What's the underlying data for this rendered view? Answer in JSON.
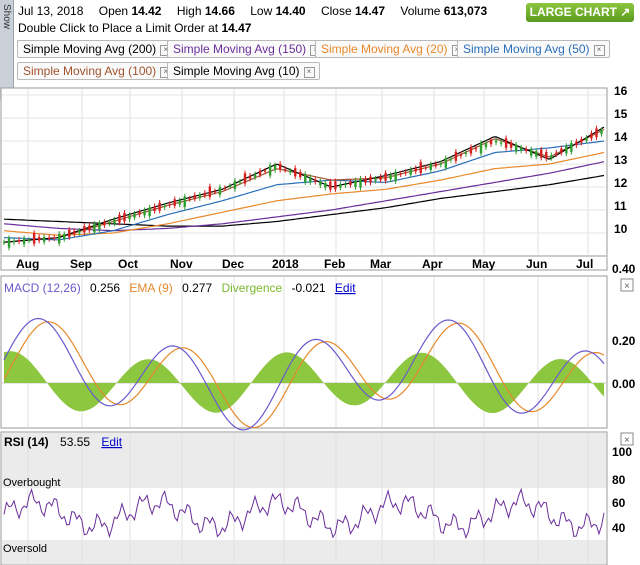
{
  "header": {
    "date": "Jul 13, 2018",
    "open_label": "Open",
    "open": "14.42",
    "high_label": "High",
    "high": "14.66",
    "low_label": "Low",
    "low": "14.40",
    "close_label": "Close",
    "close": "14.47",
    "volume_label": "Volume",
    "volume": "613,073"
  },
  "limit_order": {
    "text": "Double Click to Place a Limit Order at",
    "value": "14.47"
  },
  "large_chart_button": "LARGE CHART",
  "show_tab": "Show",
  "sma_buttons": [
    {
      "label": "Simple Moving Avg (200)",
      "color": "#000000"
    },
    {
      "label": "Simple Moving Avg (150)",
      "color": "#6a2e9a"
    },
    {
      "label": "Simple Moving Avg (20)",
      "color": "#e8892b"
    },
    {
      "label": "Simple Moving Avg (50)",
      "color": "#2a6fb8"
    },
    {
      "label": "Simple Moving Avg (100)",
      "color": "#a0522d"
    },
    {
      "label": "Simple Moving Avg (10)",
      "color": "#000000"
    }
  ],
  "colors": {
    "up": "#2e9e2e",
    "down": "#d62020",
    "macd": "#6a5acd",
    "ema": "#e8892b",
    "divergence": "#8dc63f",
    "rsi": "#6a2e9a"
  },
  "chart_data": [
    {
      "type": "candlestick",
      "categories": [
        "Aug",
        "Sep",
        "Oct",
        "Nov",
        "Dec",
        "2018",
        "Feb",
        "Mar",
        "Apr",
        "May",
        "Jun",
        "Jul"
      ],
      "ylim": [
        9,
        16
      ],
      "yticks": [
        10,
        11,
        12,
        13,
        14,
        15,
        16
      ],
      "series": [
        {
          "name": "Price",
          "monthly_close": [
            9.6,
            9.8,
            10.5,
            11.2,
            11.9,
            12.9,
            12.0,
            12.4,
            13.0,
            14.0,
            13.3,
            14.47
          ]
        },
        {
          "name": "Simple Moving Avg (200)",
          "values": [
            10.6,
            10.5,
            10.4,
            10.3,
            10.3,
            10.5,
            10.8,
            11.1,
            11.5,
            11.8,
            12.1,
            12.5
          ]
        },
        {
          "name": "Simple Moving Avg (150)",
          "values": [
            10.4,
            10.2,
            10.1,
            10.2,
            10.4,
            10.7,
            11.0,
            11.4,
            11.8,
            12.2,
            12.6,
            13.1
          ]
        },
        {
          "name": "Simple Moving Avg (100)",
          "values": [
            10.1,
            9.9,
            10.0,
            10.4,
            10.9,
            11.4,
            11.7,
            11.9,
            12.3,
            12.8,
            13.0,
            13.5
          ]
        },
        {
          "name": "Simple Moving Avg (50)",
          "values": [
            9.8,
            9.7,
            10.1,
            10.8,
            11.4,
            12.1,
            12.3,
            12.2,
            12.7,
            13.5,
            13.7,
            14.0
          ]
        },
        {
          "name": "Simple Moving Avg (20)",
          "values": [
            9.6,
            9.8,
            10.5,
            11.2,
            11.8,
            12.8,
            12.3,
            12.4,
            13.0,
            14.1,
            13.3,
            14.5
          ]
        },
        {
          "name": "Simple Moving Avg (10)",
          "values": [
            9.6,
            9.8,
            10.6,
            11.3,
            11.9,
            13.0,
            12.0,
            12.5,
            13.1,
            14.2,
            13.2,
            14.6
          ]
        }
      ]
    },
    {
      "type": "line",
      "title": "MACD (12,26)",
      "macd_value": "0.256",
      "ema_label": "EMA (9)",
      "ema_value": "0.277",
      "divergence_label": "Divergence",
      "divergence_value": "-0.021",
      "ylim": [
        -0.2,
        0.4
      ],
      "yticks": [
        "0.40",
        "0.20",
        "0.00"
      ]
    },
    {
      "type": "line",
      "title": "RSI (14)",
      "value": "53.55",
      "ylim": [
        20,
        100
      ],
      "yticks": [
        "100",
        "80",
        "60",
        "40"
      ],
      "overbought_label": "Overbought",
      "oversold_label": "Oversold"
    }
  ],
  "edit_label": "Edit"
}
